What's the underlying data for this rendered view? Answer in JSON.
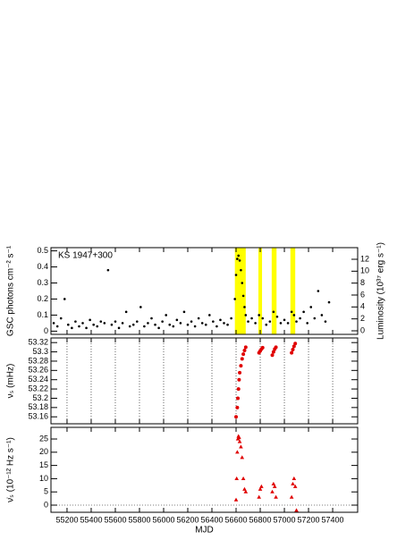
{
  "chart_data": [
    {
      "type": "scatter",
      "title": "KS 1947+300",
      "ylabel": "GSC photons cm⁻² s⁻¹",
      "y2label": "Luminosity (10³⁷ erg s⁻¹)",
      "color": "#000000",
      "band_color": "#ffff00",
      "bands": [
        [
          56590,
          56680
        ],
        [
          56785,
          56815
        ],
        [
          56895,
          56935
        ],
        [
          57050,
          57090
        ]
      ],
      "xlim": [
        55067,
        57607
      ],
      "ylim": [
        -0.02,
        0.52
      ],
      "yticks": [
        0,
        0.1,
        0.2,
        0.3,
        0.4,
        0.5
      ],
      "y2lim": [
        -0.6,
        13.95
      ],
      "y2ticks": [
        0,
        2,
        4,
        6,
        8,
        10,
        12
      ],
      "x": [
        55090,
        55120,
        55150,
        55180,
        55210,
        55240,
        55270,
        55300,
        55330,
        55360,
        55390,
        55420,
        55450,
        55480,
        55510,
        55540,
        55570,
        55600,
        55630,
        55660,
        55690,
        55720,
        55750,
        55780,
        55810,
        55840,
        55870,
        55900,
        55930,
        55960,
        55990,
        56020,
        56050,
        56080,
        56110,
        56140,
        56170,
        56200,
        56230,
        56260,
        56290,
        56320,
        56350,
        56380,
        56410,
        56440,
        56470,
        56500,
        56530,
        56560,
        56590,
        56600,
        56610,
        56620,
        56630,
        56640,
        56650,
        56660,
        56670,
        56680,
        56700,
        56730,
        56760,
        56790,
        56820,
        56850,
        56880,
        56910,
        56940,
        56970,
        57000,
        57030,
        57060,
        57080,
        57100,
        57130,
        57160,
        57190,
        57220,
        57250,
        57280,
        57310,
        57340,
        57370
      ],
      "values": [
        0.05,
        0.03,
        0.08,
        0.2,
        0.04,
        0.02,
        0.06,
        0.03,
        0.05,
        0.02,
        0.07,
        0.04,
        0.03,
        0.06,
        0.05,
        0.38,
        0.04,
        0.06,
        0.02,
        0.05,
        0.12,
        0.03,
        0.04,
        0.06,
        0.15,
        0.03,
        0.05,
        0.08,
        0.04,
        0.02,
        0.06,
        0.1,
        0.04,
        0.03,
        0.07,
        0.05,
        0.12,
        0.04,
        0.06,
        0.03,
        0.08,
        0.05,
        0.04,
        0.1,
        0.06,
        0.03,
        0.07,
        0.05,
        0.04,
        0.08,
        0.2,
        0.35,
        0.45,
        0.47,
        0.44,
        0.38,
        0.3,
        0.22,
        0.15,
        0.1,
        0.06,
        0.08,
        0.05,
        0.1,
        0.08,
        0.04,
        0.06,
        0.12,
        0.09,
        0.05,
        0.07,
        0.05,
        0.12,
        0.1,
        0.06,
        0.08,
        0.12,
        0.05,
        0.15,
        0.08,
        0.25,
        0.1,
        0.06,
        0.18
      ]
    },
    {
      "type": "scatter",
      "ylabel": "νₛ (mHz)",
      "color": "#e00000",
      "grid": true,
      "xlim": [
        55067,
        57607
      ],
      "ylim": [
        53.145,
        53.33
      ],
      "yticks": [
        53.16,
        53.18,
        53.2,
        53.22,
        53.24,
        53.26,
        53.28,
        53.3,
        53.32
      ],
      "x": [
        56600,
        56610,
        56615,
        56620,
        56625,
        56630,
        56640,
        56650,
        56660,
        56670,
        56680,
        56790,
        56800,
        56810,
        56820,
        56900,
        56910,
        56920,
        56930,
        57060,
        57070,
        57080,
        57090
      ],
      "values": [
        53.16,
        53.18,
        53.2,
        53.22,
        53.24,
        53.255,
        53.27,
        53.285,
        53.295,
        53.303,
        53.31,
        53.298,
        53.302,
        53.306,
        53.309,
        53.293,
        53.3,
        53.306,
        53.31,
        53.298,
        53.305,
        53.312,
        53.318
      ]
    },
    {
      "type": "triangle",
      "ylabel": "ν̇ₛ (10⁻¹² Hz s⁻¹)",
      "xlabel": "MJD",
      "color": "#e00000",
      "zero_line": true,
      "xlim": [
        55067,
        57607
      ],
      "ylim": [
        -2.7,
        29.4
      ],
      "yticks": [
        0,
        5,
        10,
        15,
        20,
        25
      ],
      "xticks": [
        55200,
        55400,
        55600,
        55800,
        56000,
        56200,
        56400,
        56600,
        56800,
        57000,
        57200,
        57400
      ],
      "x": [
        56600,
        56605,
        56610,
        56615,
        56620,
        56625,
        56630,
        56640,
        56650,
        56660,
        56670,
        56680,
        56790,
        56800,
        56810,
        56900,
        56910,
        56920,
        56930,
        57060,
        57070,
        57080,
        57090,
        57100
      ],
      "values": [
        2,
        10,
        20,
        25,
        26,
        25.5,
        24,
        22,
        18,
        10,
        6,
        5,
        3,
        6,
        7,
        5,
        8,
        7,
        3,
        3,
        8,
        10,
        7,
        -2
      ]
    }
  ]
}
